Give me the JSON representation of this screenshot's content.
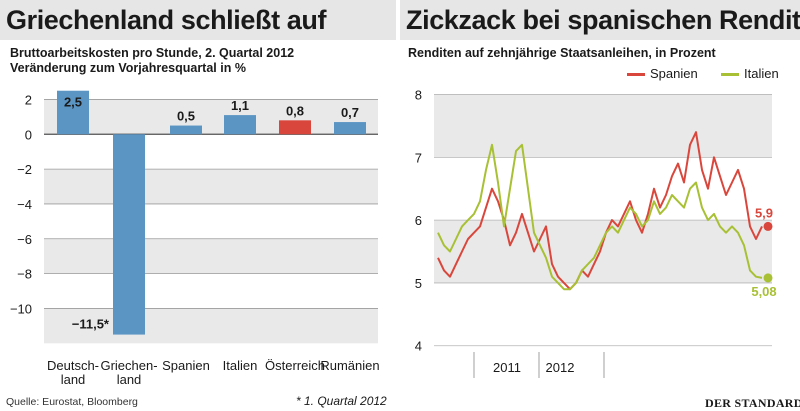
{
  "left": {
    "headline": "Griechenland schließt auf",
    "subtitle_line1": "Bruttoarbeitskosten pro Stunde, 2. Quartal 2012",
    "subtitle_line2": "Veränderung zum Vorjahresquartal in %"
  },
  "right": {
    "headline": "Zickzack bei spanischen Renditen",
    "subtitle": "Renditen auf zehnjährige Staatsanleihen, in Prozent"
  },
  "footer": {
    "source": "Quelle: Eurostat, Bloomberg",
    "note": "* 1. Quartal 2012",
    "brand": "DER STANDARD"
  },
  "colors": {
    "bar_blue": "#5b95c4",
    "bar_red": "#d9473c",
    "spain_red": "#d9473c",
    "italy_green": "#a8c034",
    "band": "#e9e9e9"
  },
  "chart_data": [
    {
      "type": "bar",
      "categories": [
        "Deutsch-\nland",
        "Griechen-\nland",
        "Spanien",
        "Italien",
        "Österreich",
        "Rumänien"
      ],
      "values": [
        2.5,
        -11.5,
        0.5,
        1.1,
        0.8,
        0.7
      ],
      "value_labels": [
        "2,5",
        "−11,5*",
        "0,5",
        "1,1",
        "0,8",
        "0,7"
      ],
      "highlight": [
        false,
        false,
        false,
        false,
        true,
        false
      ],
      "ylim": [
        -12.5,
        3
      ],
      "yticks": [
        2,
        0,
        -2,
        -4,
        -6,
        -8,
        -10
      ],
      "ytick_labels": [
        "2",
        "0",
        "−2",
        "−4",
        "−6",
        "−8",
        "−10"
      ],
      "title": "Bruttoarbeitskosten pro Stunde, 2. Quartal 2012",
      "ylabel": "Veränderung zum Vorjahresquartal in %",
      "grid": true
    },
    {
      "type": "line",
      "title": "Renditen auf zehnjährige Staatsanleihen, in Prozent",
      "x": [
        0,
        0.05,
        0.1,
        0.15,
        0.2,
        0.25,
        0.3,
        0.35,
        0.4,
        0.45,
        0.5,
        0.55,
        0.6,
        0.65,
        0.7,
        0.75,
        0.8,
        0.85,
        0.9,
        0.95,
        1.0,
        1.05,
        1.1,
        1.15,
        1.2,
        1.25,
        1.3,
        1.35,
        1.4,
        1.45,
        1.5,
        1.55,
        1.6,
        1.65,
        1.7,
        1.75,
        1.8,
        1.85,
        1.9,
        1.95,
        2.0,
        2.05,
        2.1,
        2.15,
        2.2,
        2.25,
        2.3,
        2.35,
        2.4,
        2.45,
        2.5,
        2.55,
        2.6,
        2.65,
        2.7
      ],
      "series": [
        {
          "name": "Spanien",
          "color": "#d9473c",
          "values": [
            5.4,
            5.2,
            5.1,
            5.3,
            5.5,
            5.7,
            5.8,
            5.9,
            6.2,
            6.5,
            6.3,
            6.0,
            5.6,
            5.8,
            6.1,
            5.8,
            5.5,
            5.7,
            5.9,
            5.3,
            5.1,
            5.0,
            4.9,
            5.0,
            5.2,
            5.1,
            5.3,
            5.5,
            5.8,
            6.0,
            5.9,
            6.1,
            6.3,
            6.0,
            5.8,
            6.1,
            6.5,
            6.2,
            6.4,
            6.7,
            6.9,
            6.6,
            7.2,
            7.4,
            6.8,
            6.5,
            7.0,
            6.7,
            6.4,
            6.6,
            6.8,
            6.5,
            5.9,
            5.7,
            5.9
          ]
        },
        {
          "name": "Italien",
          "color": "#a8c034",
          "values": [
            5.8,
            5.6,
            5.5,
            5.7,
            5.9,
            6.0,
            6.1,
            6.3,
            6.8,
            7.2,
            6.6,
            5.9,
            6.5,
            7.1,
            7.2,
            6.5,
            5.8,
            5.6,
            5.4,
            5.1,
            5.0,
            4.9,
            4.9,
            5.0,
            5.2,
            5.3,
            5.4,
            5.6,
            5.8,
            5.9,
            5.8,
            6.0,
            6.2,
            6.1,
            5.9,
            6.0,
            6.3,
            6.1,
            6.2,
            6.4,
            6.3,
            6.2,
            6.5,
            6.6,
            6.2,
            6.0,
            6.1,
            5.9,
            5.8,
            5.9,
            5.8,
            5.6,
            5.2,
            5.1,
            5.08
          ]
        }
      ],
      "end_labels": {
        "Spanien": "5,9",
        "Italien": "5,08"
      },
      "x_tick_labels": [
        "2011",
        "2012"
      ],
      "yticks": [
        4,
        5,
        6,
        7,
        8
      ],
      "ylim": [
        3.9,
        8.2
      ],
      "legend": "top-right",
      "grid": true
    }
  ]
}
